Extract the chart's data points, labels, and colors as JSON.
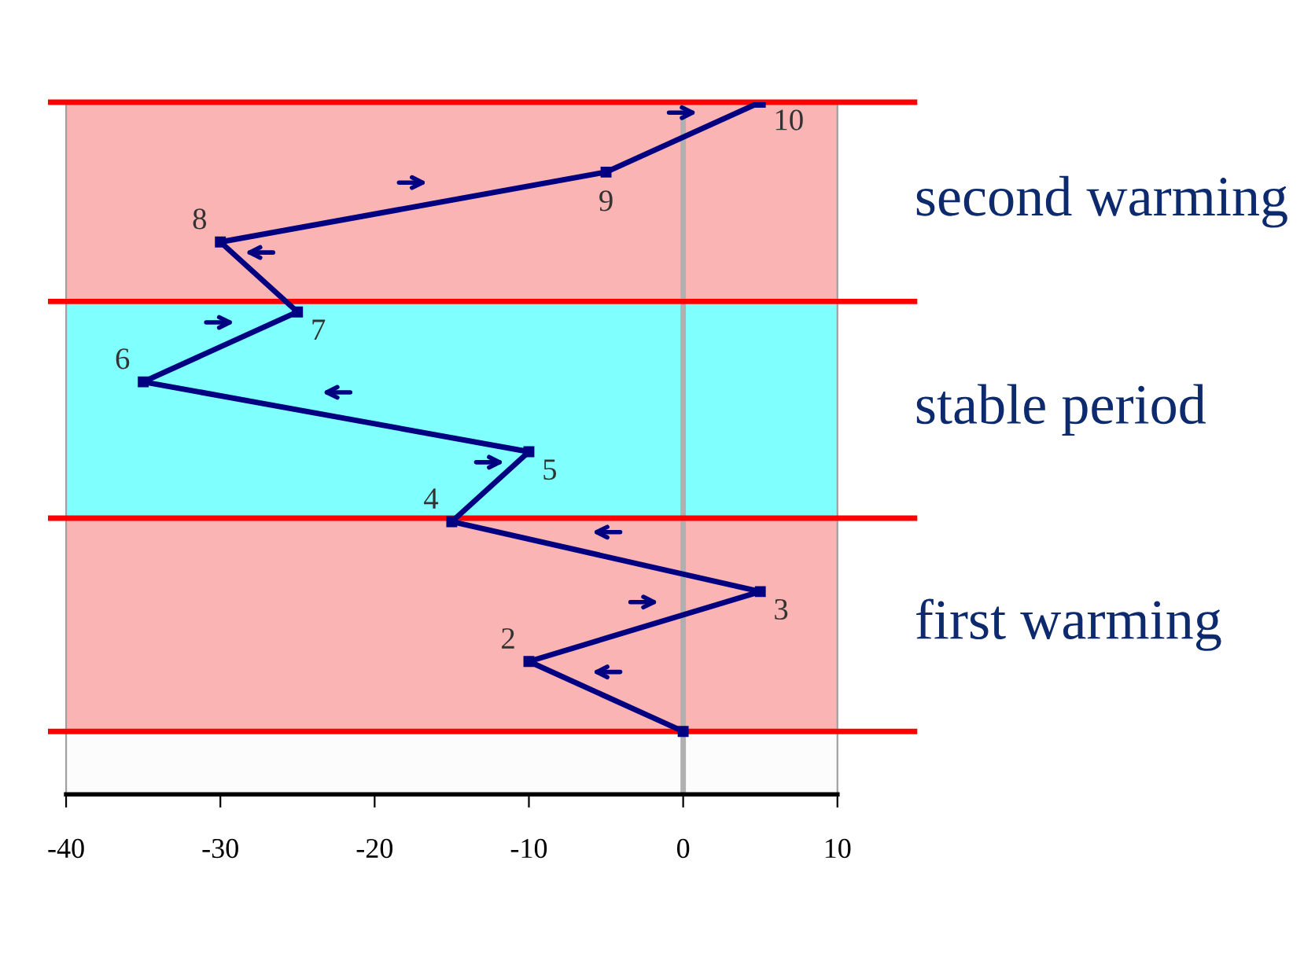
{
  "chart_data": {
    "type": "line",
    "x": [
      0,
      -10,
      5,
      -15,
      -10,
      -35,
      -25,
      -30,
      -5,
      5
    ],
    "values": [
      1,
      2,
      3,
      4,
      5,
      6,
      7,
      8,
      9,
      10
    ],
    "value_labels": [
      null,
      "2",
      "3",
      "4",
      "5",
      "6",
      "7",
      "8",
      "9",
      "10"
    ],
    "color": "#000080",
    "marker": "square",
    "line_style": "solid",
    "xlim": [
      -40,
      10
    ],
    "xticks": [
      -40,
      -30,
      -20,
      -10,
      0,
      10
    ],
    "ylim": [
      0.1,
      10
    ],
    "tick_labels": "x",
    "grid": false,
    "bands": [
      {
        "axis": "y",
        "from": 1,
        "to": 4.05,
        "label": "first warming",
        "color": "#fbb4b4"
      },
      {
        "axis": "y",
        "from": 4.05,
        "to": 7.15,
        "label": "stable period",
        "color": "#80ffff"
      },
      {
        "axis": "y",
        "from": 7.15,
        "to": 10,
        "label": "second warming",
        "color": "#fbb4b4"
      }
    ],
    "ref_lines": [
      {
        "axis": "y",
        "value": 1,
        "color": "#ff0000",
        "line_style": "solid"
      },
      {
        "axis": "y",
        "value": 4.05,
        "color": "#ff0000",
        "line_style": "solid"
      },
      {
        "axis": "y",
        "value": 7.15,
        "color": "#ff0000",
        "line_style": "solid"
      },
      {
        "axis": "y",
        "value": 10,
        "color": "#ff0000",
        "line_style": "solid"
      },
      {
        "axis": "x",
        "value": 0,
        "color": "#b0b0b0",
        "line_style": "solid"
      }
    ]
  }
}
